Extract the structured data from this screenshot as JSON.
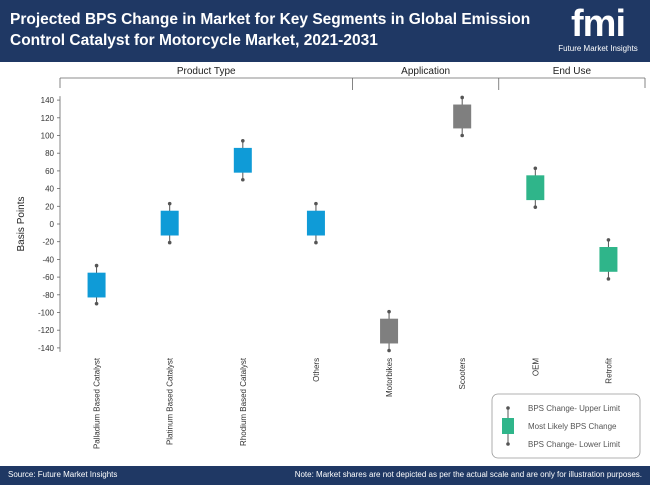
{
  "header": {
    "title": "Projected BPS Change in Market for Key Segments in Global Emission Control Catalyst for Motorcycle Market, 2021-2031"
  },
  "logo": {
    "text": "fmi",
    "subtitle": "Future Market Insights"
  },
  "footer": {
    "source": "Source: Future Market Insights",
    "note": "Note: Market shares are not depicted as per the actual scale and are only for illustration purposes."
  },
  "colors": {
    "header_bg": "#1f3864",
    "blue": "#0f9bd7",
    "gray": "#7f7f7f",
    "green": "#2fb58a"
  },
  "chart_data": {
    "type": "boxplot",
    "title": "Projected BPS Change in Market for Key Segments in Global Emission Control Catalyst for Motorcycle Market, 2021-2031",
    "ylabel": "Basis Points",
    "ylim": [
      -140,
      140
    ],
    "yticks": [
      140,
      120,
      100,
      80,
      60,
      40,
      20,
      0,
      -20,
      -40,
      -60,
      -80,
      -100,
      -120,
      -140
    ],
    "groups": [
      {
        "name": "Product Type",
        "categories": [
          "Palladium Based Catalyst",
          "Platinum Based Catalyst",
          "Rhodium Based Catalyst",
          "Others"
        ]
      },
      {
        "name": "Application",
        "categories": [
          "Motorbikes",
          "Scooters"
        ]
      },
      {
        "name": "End Use",
        "categories": [
          "OEM",
          "Retrofit"
        ]
      }
    ],
    "series": [
      {
        "category": "Palladium Based Catalyst",
        "upper": -47,
        "box_high": -55,
        "box_low": -83,
        "lower": -90,
        "color": "#0f9bd7"
      },
      {
        "category": "Platinum Based Catalyst",
        "upper": 23,
        "box_high": 15,
        "box_low": -13,
        "lower": -21,
        "color": "#0f9bd7"
      },
      {
        "category": "Rhodium Based Catalyst",
        "upper": 94,
        "box_high": 86,
        "box_low": 58,
        "lower": 50,
        "color": "#0f9bd7"
      },
      {
        "category": "Others",
        "upper": 23,
        "box_high": 15,
        "box_low": -13,
        "lower": -21,
        "color": "#0f9bd7"
      },
      {
        "category": "Motorbikes",
        "upper": -99,
        "box_high": -107,
        "box_low": -135,
        "lower": -143,
        "color": "#7f7f7f"
      },
      {
        "category": "Scooters",
        "upper": 143,
        "box_high": 135,
        "box_low": 108,
        "lower": 100,
        "color": "#7f7f7f"
      },
      {
        "category": "OEM",
        "upper": 63,
        "box_high": 55,
        "box_low": 27,
        "lower": 19,
        "color": "#2fb58a"
      },
      {
        "category": "Retrofit",
        "upper": -18,
        "box_high": -26,
        "box_low": -54,
        "lower": -62,
        "color": "#2fb58a"
      }
    ],
    "legend": {
      "position": "bottom-right",
      "items": [
        "BPS Change- Upper Limit",
        "Most Likely BPS Change",
        "BPS Change- Lower Limit"
      ]
    }
  }
}
